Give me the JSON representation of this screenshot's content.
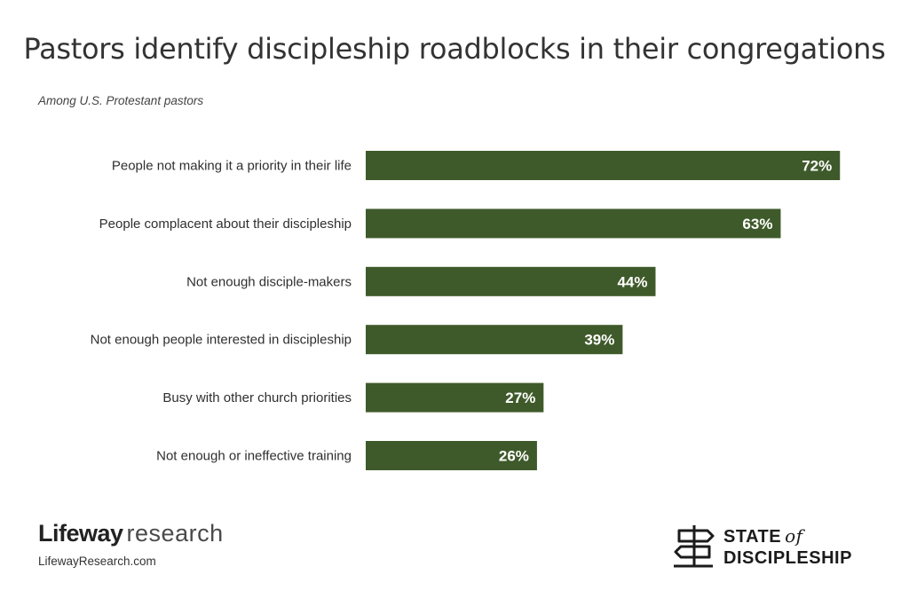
{
  "header": {
    "title": "Pastors identify discipleship roadblocks in their congregations",
    "subtitle": "Among U.S. Protestant pastors"
  },
  "chart_data": {
    "type": "bar",
    "orientation": "horizontal",
    "categories": [
      "People not making it a priority in their life",
      "People complacent about their discipleship",
      "Not enough disciple-makers",
      "Not enough people interested in discipleship",
      "Busy with other church priorities",
      "Not enough or ineffective training"
    ],
    "values": [
      72,
      63,
      44,
      39,
      27,
      26
    ],
    "value_labels": [
      "72%",
      "63%",
      "44%",
      "39%",
      "27%",
      "26%"
    ],
    "unit": "%",
    "bar_color": "#3f5a2a",
    "label_color": "#ffffff",
    "grid": false
  },
  "footer": {
    "brand_bold": "Lifeway",
    "brand_light": "research",
    "url": "LifewayResearch.com",
    "partner_line1": "STATE",
    "partner_of": "of",
    "partner_line2": "DISCIPLESHIP"
  }
}
